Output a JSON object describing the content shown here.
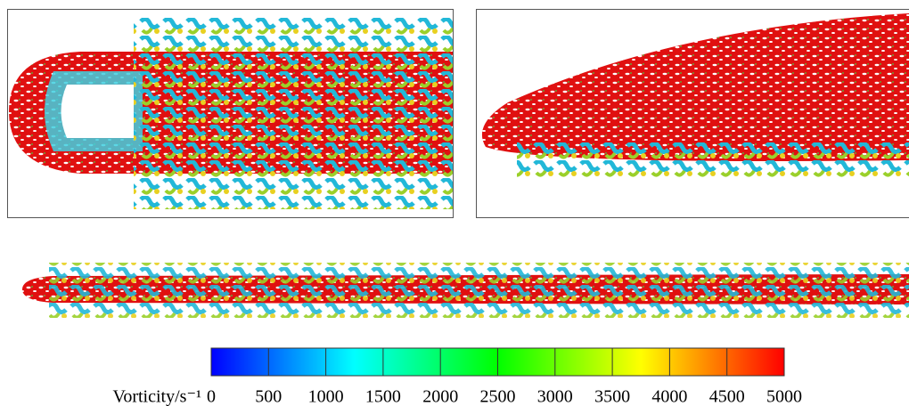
{
  "chart_data": {
    "type": "colorbar",
    "label": "Vorticity/s⁻¹",
    "xlim": [
      0,
      5000
    ],
    "xticks": [
      0,
      500,
      1000,
      1500,
      2000,
      2500,
      3000,
      3500,
      4000,
      4500,
      5000
    ],
    "colors": [
      "#0000ff",
      "#0080ff",
      "#00ffff",
      "#00ff80",
      "#00ff00",
      "#80ff00",
      "#ffff00",
      "#ff8000",
      "#ff0000"
    ]
  }
}
